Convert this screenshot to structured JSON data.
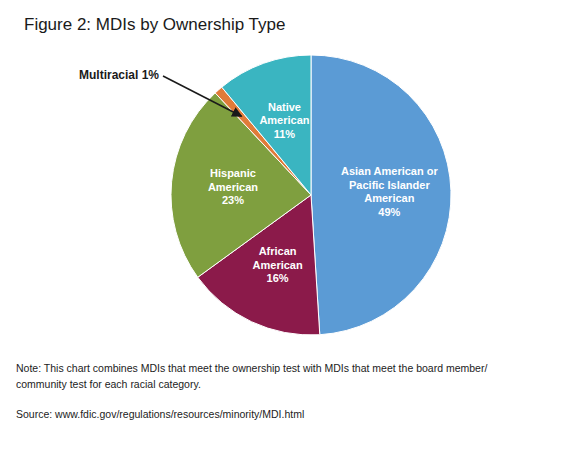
{
  "chart_data": {
    "type": "pie",
    "title": "Figure 2: MDIs by Ownership Type",
    "categories": [
      "Asian American or\nPacific Islander\nAmerican\n49%",
      "African\nAmerican\n16%",
      "Hispanic\nAmerican\n23%",
      null,
      "Native\nAmerican\n11%"
    ],
    "values": [
      49,
      16,
      23,
      1,
      11
    ],
    "colors": [
      "#5b9bd5",
      "#8b1a4a",
      "#7f9f3f",
      "#e07b39",
      "#3ab5c1"
    ],
    "annotations": [
      "Multiracial 1%"
    ],
    "notes": [
      "Note: This chart combines MDIs that meet the ownership test with MDIs that meet the board member/",
      "community test for each racial category."
    ],
    "source": "Source: www.fdic.gov/regulations/resources/minority/MDI.html"
  }
}
